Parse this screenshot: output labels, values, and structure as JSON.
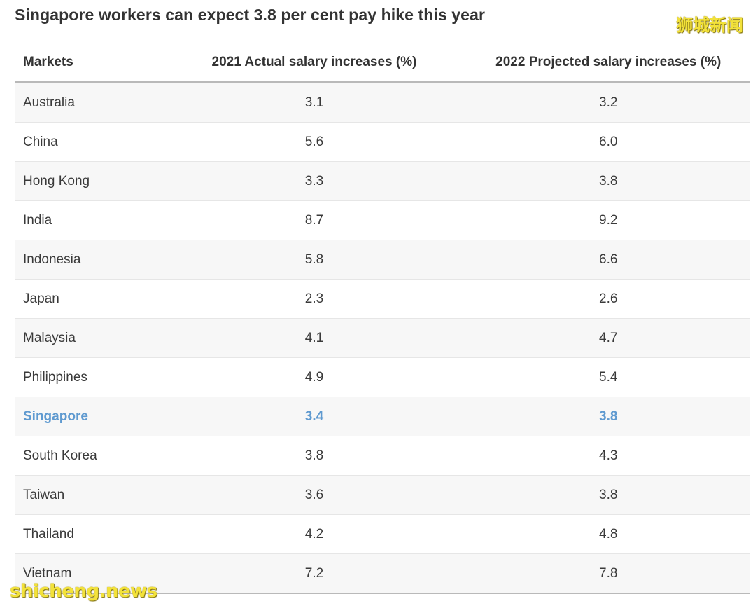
{
  "page": {
    "title": "Singapore workers can expect 3.8 per cent pay hike this year",
    "watermark_cn": "狮城新闻",
    "watermark_en": "shicheng.news"
  },
  "colors": {
    "highlight": "#5f9ad0",
    "text": "#333333",
    "stripe": "#f7f7f7",
    "watermark": "#f3e23a"
  },
  "chart_data": {
    "type": "table",
    "title": "Singapore workers can expect 3.8 per cent pay hike this year",
    "columns": [
      "Markets",
      "2021 Actual salary increases (%)",
      "2022 Projected salary increases (%)"
    ],
    "rows": [
      {
        "market": "Australia",
        "y2021": "3.1",
        "y2022": "3.2"
      },
      {
        "market": "China",
        "y2021": "5.6",
        "y2022": "6.0"
      },
      {
        "market": "Hong Kong",
        "y2021": "3.3",
        "y2022": "3.8"
      },
      {
        "market": "India",
        "y2021": "8.7",
        "y2022": "9.2"
      },
      {
        "market": "Indonesia",
        "y2021": "5.8",
        "y2022": "6.6"
      },
      {
        "market": "Japan",
        "y2021": "2.3",
        "y2022": "2.6"
      },
      {
        "market": "Malaysia",
        "y2021": "4.1",
        "y2022": "4.7"
      },
      {
        "market": "Philippines",
        "y2021": "4.9",
        "y2022": "5.4"
      },
      {
        "market": "Singapore",
        "y2021": "3.4",
        "y2022": "3.8",
        "highlighted": true
      },
      {
        "market": "South Korea",
        "y2021": "3.8",
        "y2022": "4.3"
      },
      {
        "market": "Taiwan",
        "y2021": "3.6",
        "y2022": "3.8"
      },
      {
        "market": "Thailand",
        "y2021": "4.2",
        "y2022": "4.8"
      },
      {
        "market": "Vietnam",
        "y2021": "7.2",
        "y2022": "7.8"
      }
    ]
  }
}
